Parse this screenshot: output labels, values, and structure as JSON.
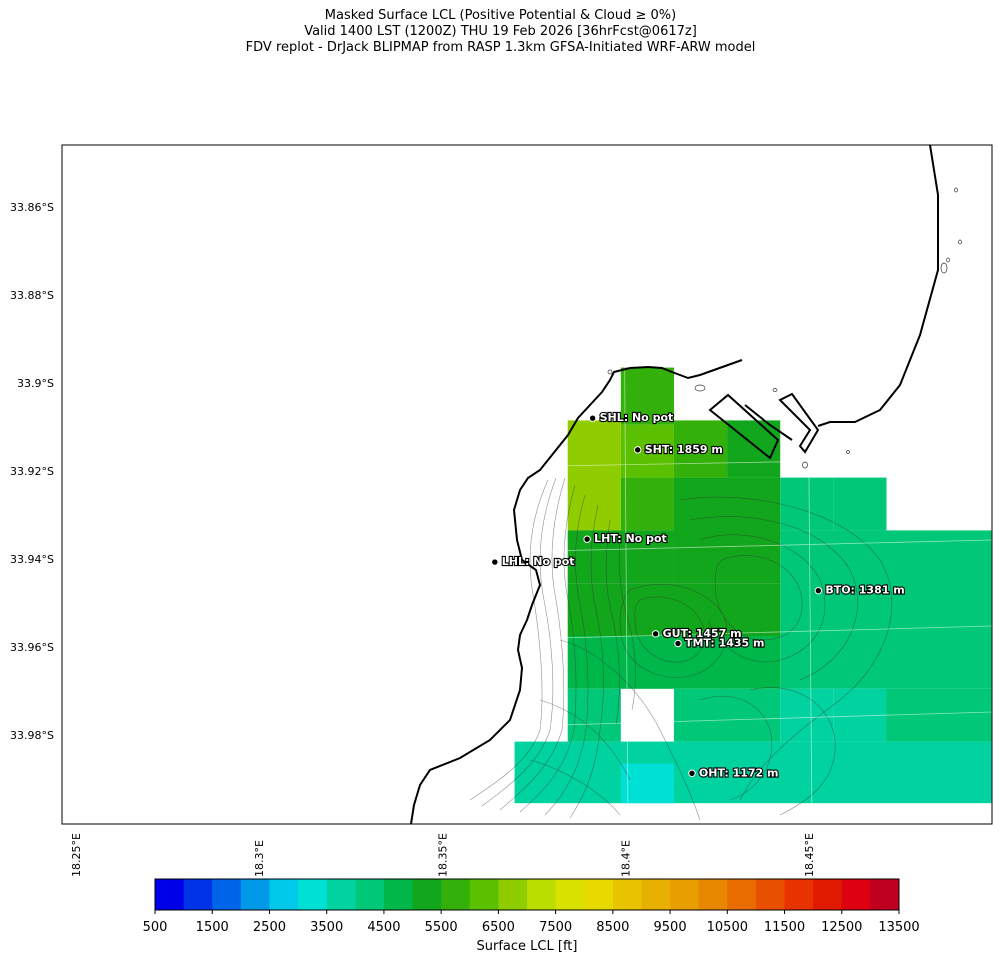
{
  "title_lines": [
    "Masked Surface LCL (Positive Potential & Cloud ≥ 0%)",
    "Valid 1400 LST (1200Z) THU 19 Feb 2026 [36hrFcst@0617z]",
    "FDV replot - DrJack BLIPMAP from RASP 1.3km GFSA-Initiated WRF-ARW model"
  ],
  "map": {
    "lat_ticks": [
      {
        "label": "33.86°S",
        "lat": -33.86
      },
      {
        "label": "33.88°S",
        "lat": -33.88
      },
      {
        "label": "33.9°S",
        "lat": -33.9
      },
      {
        "label": "33.92°S",
        "lat": -33.92
      },
      {
        "label": "33.94°S",
        "lat": -33.94
      },
      {
        "label": "33.96°S",
        "lat": -33.96
      },
      {
        "label": "33.98°S",
        "lat": -33.98
      }
    ],
    "lon_ticks": [
      {
        "label": "18.25°E",
        "lon": 18.25
      },
      {
        "label": "18.3°E",
        "lon": 18.3
      },
      {
        "label": "18.35°E",
        "lon": 18.35
      },
      {
        "label": "18.4°E",
        "lon": 18.4
      },
      {
        "label": "18.45°E",
        "lon": 18.45
      }
    ],
    "stations": [
      {
        "code": "SHL",
        "label": "SHL: No pot",
        "lat": -33.908,
        "lon": 18.391
      },
      {
        "code": "SHT",
        "label": "SHT: 1859 m",
        "lat": -33.9152,
        "lon": 18.4033
      },
      {
        "code": "LHT",
        "label": "LHT: No pot",
        "lat": -33.9355,
        "lon": 18.3895
      },
      {
        "code": "LHL",
        "label": "LHL: No pot",
        "lat": -33.9407,
        "lon": 18.3643
      },
      {
        "code": "BTO",
        "label": "BTO: 1381 m",
        "lat": -33.9472,
        "lon": 18.4526
      },
      {
        "code": "GUT",
        "label": "GUT: 1457 m",
        "lat": -33.957,
        "lon": 18.4082
      },
      {
        "code": "TMT",
        "label": "TMT: 1435 m",
        "lat": -33.9592,
        "lon": 18.4143
      },
      {
        "code": "OHT",
        "label": "OHT: 1172 m",
        "lat": -33.9887,
        "lon": 18.4181
      }
    ],
    "lcl_cells_ft": [
      {
        "lon0": 18.3987,
        "lon1": 18.4132,
        "lat0": -33.9095,
        "lat1": -33.8965,
        "value": 5500
      },
      {
        "lon0": 18.3842,
        "lon1": 18.3987,
        "lat0": -33.9335,
        "lat1": -33.9085,
        "value": 6500
      },
      {
        "lon0": 18.3987,
        "lon1": 18.4132,
        "lat0": -33.9215,
        "lat1": -33.9095,
        "value": 6000
      },
      {
        "lon0": 18.4132,
        "lon1": 18.4277,
        "lat0": -33.9215,
        "lat1": -33.9085,
        "value": 5500
      },
      {
        "lon0": 18.4277,
        "lon1": 18.4422,
        "lat0": -33.9215,
        "lat1": -33.9085,
        "value": 5000
      },
      {
        "lon0": 18.4132,
        "lon1": 18.4422,
        "lat0": -33.9355,
        "lat1": -33.9215,
        "value": 5000
      },
      {
        "lon0": 18.3987,
        "lon1": 18.4132,
        "lat0": -33.9335,
        "lat1": -33.9215,
        "value": 5500
      },
      {
        "lon0": 18.4422,
        "lon1": 18.4567,
        "lat0": -33.9335,
        "lat1": -33.9215,
        "value": 4000
      },
      {
        "lon0": 18.4567,
        "lon1": 18.4712,
        "lat0": -33.9335,
        "lat1": -33.9215,
        "value": 4000
      },
      {
        "lon0": 18.5002,
        "lon1": 18.5147,
        "lat0": -33.9335,
        "lat1": -33.9215,
        "value": 4500
      },
      {
        "lon0": 18.3842,
        "lon1": 18.4132,
        "lat0": -33.9455,
        "lat1": -33.9335,
        "value": 5000
      },
      {
        "lon0": 18.4132,
        "lon1": 18.4422,
        "lat0": -33.9455,
        "lat1": -33.9335,
        "value": 5000
      },
      {
        "lon0": 18.4422,
        "lon1": 18.5147,
        "lat0": -33.9575,
        "lat1": -33.9335,
        "value": 4000
      },
      {
        "lon0": 18.3842,
        "lon1": 18.4422,
        "lat0": -33.9575,
        "lat1": -33.9455,
        "value": 5000
      },
      {
        "lon0": 18.3842,
        "lon1": 18.4422,
        "lat0": -33.9695,
        "lat1": -33.9575,
        "value": 4500
      },
      {
        "lon0": 18.4422,
        "lon1": 18.5147,
        "lat0": -33.9695,
        "lat1": -33.9575,
        "value": 4000
      },
      {
        "lon0": 18.3842,
        "lon1": 18.3987,
        "lat0": -33.9815,
        "lat1": -33.9695,
        "value": 4000
      },
      {
        "lon0": 18.4132,
        "lon1": 18.4422,
        "lat0": -33.9815,
        "lat1": -33.9695,
        "value": 4000
      },
      {
        "lon0": 18.4422,
        "lon1": 18.4567,
        "lat0": -33.9815,
        "lat1": -33.9695,
        "value": 3500
      },
      {
        "lon0": 18.4567,
        "lon1": 18.4712,
        "lat0": -33.9815,
        "lat1": -33.9695,
        "value": 3500
      },
      {
        "lon0": 18.4712,
        "lon1": 18.5147,
        "lat0": -33.9815,
        "lat1": -33.9695,
        "value": 4000
      },
      {
        "lon0": 18.3697,
        "lon1": 18.5147,
        "lat0": -33.9955,
        "lat1": -33.9815,
        "value": 3500
      },
      {
        "lon0": 18.3987,
        "lon1": 18.4132,
        "lat0": -33.9955,
        "lat1": -33.9865,
        "value": 3000
      }
    ]
  },
  "colorbar": {
    "label": "Surface LCL [ft]",
    "tick_labels": [
      "500",
      "1500",
      "2500",
      "3500",
      "4500",
      "5500",
      "6500",
      "7500",
      "8500",
      "9500",
      "10500",
      "11500",
      "12500",
      "13500"
    ],
    "colors": [
      "#0000e8",
      "#0033e8",
      "#0066e8",
      "#0099e8",
      "#00c8e8",
      "#00e0d4",
      "#00d3a0",
      "#00c878",
      "#00b84a",
      "#12a61c",
      "#33b00a",
      "#5ac000",
      "#8fcd00",
      "#b9de00",
      "#d9e100",
      "#e8d900",
      "#e8c500",
      "#e8b000",
      "#e89e00",
      "#e88700",
      "#e86c00",
      "#e85000",
      "#e83200",
      "#e01a00",
      "#dc0010",
      "#c00020"
    ],
    "vmin": 500,
    "vmax": 13500
  }
}
